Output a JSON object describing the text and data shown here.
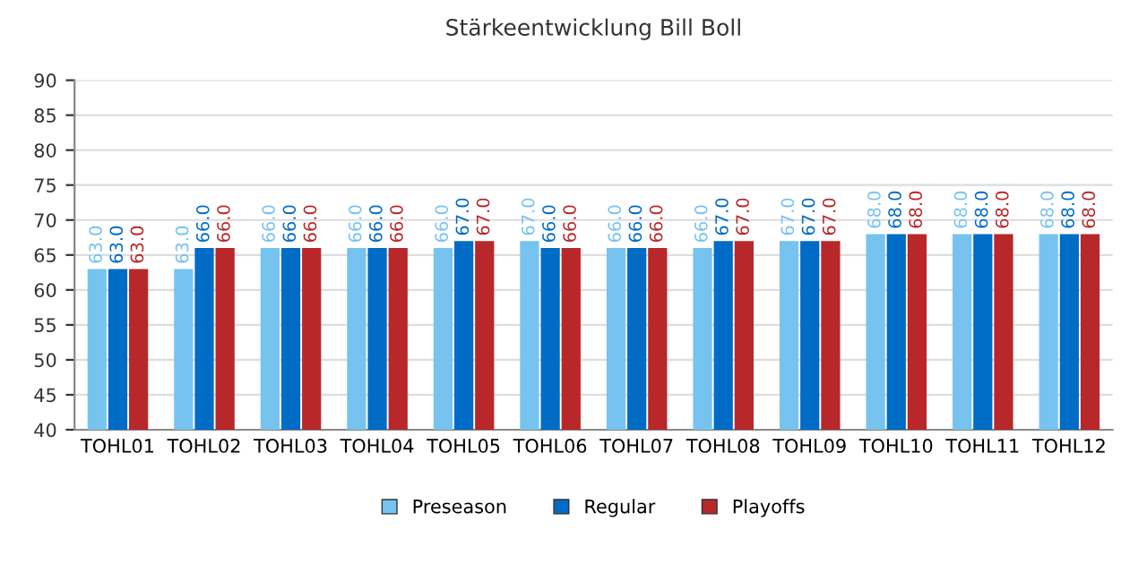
{
  "chart_data": {
    "type": "bar",
    "title": "Stärkeentwicklung Bill Boll",
    "categories": [
      "TOHL01",
      "TOHL02",
      "TOHL03",
      "TOHL04",
      "TOHL05",
      "TOHL06",
      "TOHL07",
      "TOHL08",
      "TOHL09",
      "TOHL10",
      "TOHL11",
      "TOHL12"
    ],
    "series": [
      {
        "name": "Preseason",
        "color": "#76c3f0",
        "values": [
          63,
          63,
          66,
          66,
          66,
          67,
          66,
          66,
          67,
          68,
          68,
          68
        ],
        "value_labels": [
          "63.0",
          "63.0",
          "66.0",
          "66.0",
          "66.0",
          "67.0",
          "66.0",
          "66.0",
          "67.0",
          "68.0",
          "68.0",
          "68.0"
        ]
      },
      {
        "name": "Regular",
        "color": "#006cc5",
        "values": [
          63,
          66,
          66,
          66,
          67,
          66,
          66,
          67,
          67,
          68,
          68,
          68
        ],
        "value_labels": [
          "63.0",
          "66.0",
          "66.0",
          "66.0",
          "67.0",
          "66.0",
          "66.0",
          "67.0",
          "67.0",
          "68.0",
          "68.0",
          "68.0"
        ]
      },
      {
        "name": "Playoffs",
        "color": "#b8282a",
        "values": [
          63,
          66,
          66,
          66,
          67,
          66,
          66,
          67,
          67,
          68,
          68,
          68
        ],
        "value_labels": [
          "63.0",
          "66.0",
          "66.0",
          "66.0",
          "67.0",
          "66.0",
          "66.0",
          "67.0",
          "67.0",
          "68.0",
          "68.0",
          "68.0"
        ]
      }
    ],
    "ylim": [
      40,
      90
    ],
    "yticks": [
      40,
      45,
      50,
      55,
      60,
      65,
      70,
      75,
      80,
      85,
      90
    ],
    "grid": "y",
    "legend": "bottom"
  }
}
